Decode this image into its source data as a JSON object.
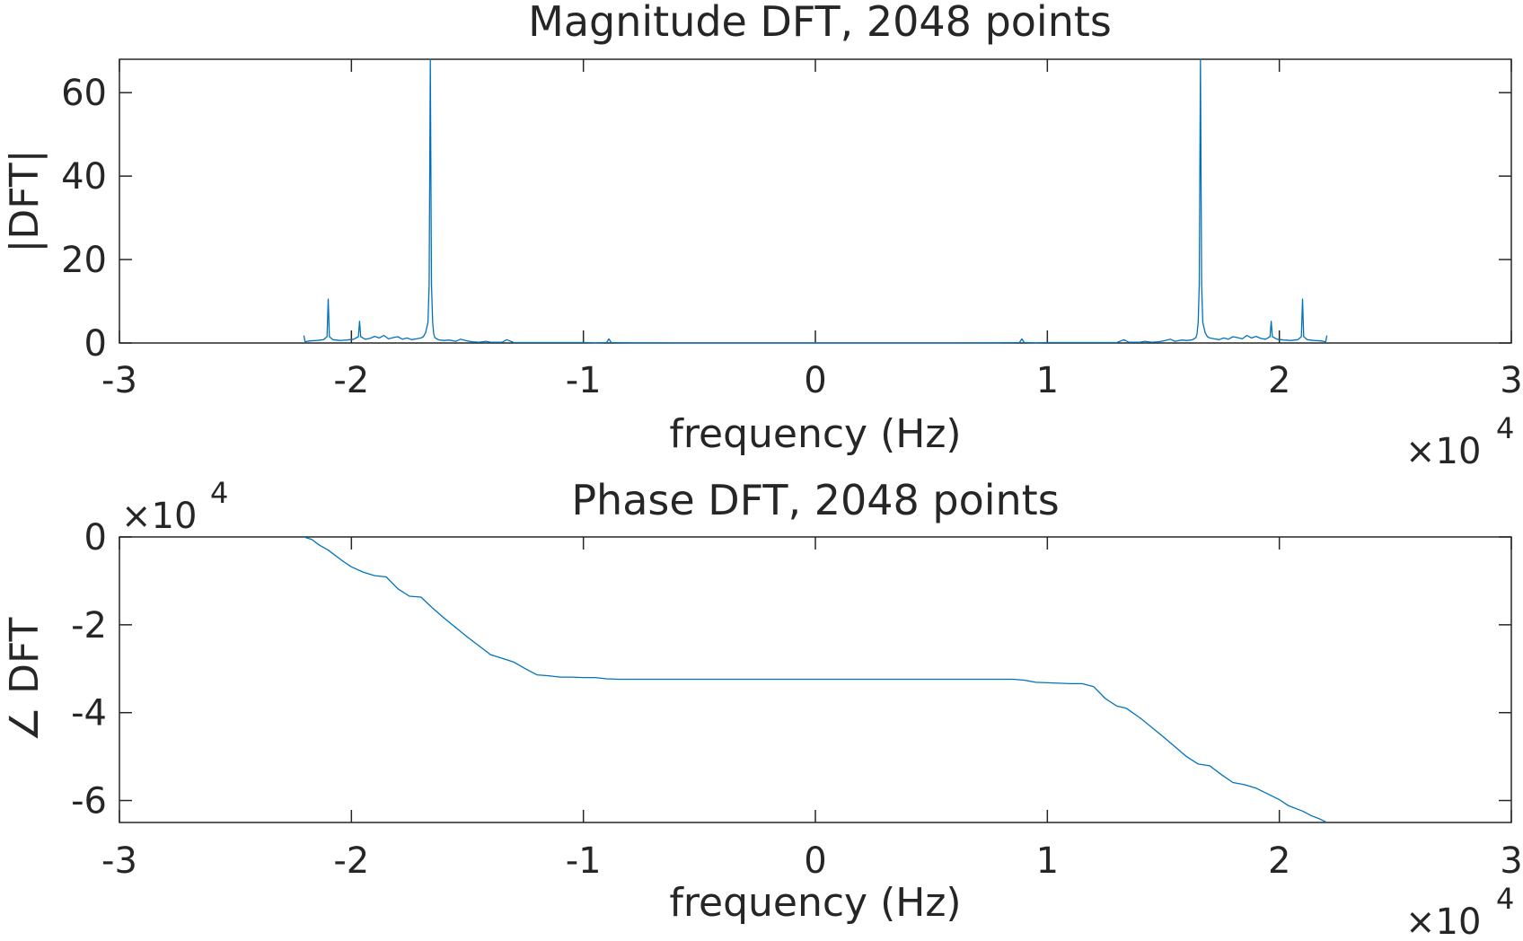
{
  "chart_data": [
    {
      "type": "line",
      "title": "Magnitude DFT, 2048 points",
      "xlabel": "frequency (Hz)",
      "ylabel": "|DFT|",
      "xlim": [
        -30000,
        30000
      ],
      "ylim": [
        0,
        68
      ],
      "xticks": [
        -30000,
        -20000,
        -10000,
        0,
        10000,
        20000,
        30000
      ],
      "xtick_labels": [
        "-3",
        "-2",
        "-1",
        "0",
        "1",
        "2",
        "3"
      ],
      "x_exponent_label": "×10",
      "x_exponent_power": "4",
      "yticks": [
        0,
        20,
        40,
        60
      ],
      "ytick_labels": [
        "0",
        "20",
        "40",
        "60"
      ],
      "grid": false,
      "color": "#0072BD",
      "series": [
        {
          "x": [
            -22050,
            -22000,
            -21800,
            -21500,
            -21200,
            -21050,
            -21000,
            -20950,
            -20800,
            -20500,
            -20200,
            -19900,
            -19700,
            -19650,
            -19600,
            -19400,
            -19200,
            -19000,
            -18800,
            -18600,
            -18400,
            -18200,
            -18000,
            -17800,
            -17600,
            -17400,
            -17200,
            -17000,
            -16900,
            -16800,
            -16700,
            -16650,
            -16600,
            -16550,
            -16500,
            -16450,
            -16400,
            -16300,
            -16200,
            -16000,
            -15800,
            -15500,
            -15300,
            -15000,
            -14800,
            -14500,
            -14200,
            -14000,
            -13800,
            -13500,
            -13300,
            -13000,
            -12000,
            -11000,
            -10000,
            -9500,
            -9000,
            -8900,
            -8800,
            -8000,
            -6000,
            -4000,
            -2000,
            0,
            2000,
            4000,
            6000,
            8000,
            8800,
            8900,
            9000,
            9500,
            10000,
            11000,
            12000,
            13000,
            13300,
            13500,
            13800,
            14000,
            14200,
            14500,
            14800,
            15000,
            15300,
            15500,
            15800,
            16000,
            16200,
            16300,
            16400,
            16450,
            16500,
            16550,
            16600,
            16650,
            16700,
            16800,
            16900,
            17000,
            17200,
            17400,
            17600,
            17800,
            18000,
            18200,
            18400,
            18600,
            18800,
            19000,
            19200,
            19400,
            19600,
            19650,
            19700,
            19900,
            20200,
            20500,
            20800,
            20950,
            21000,
            21050,
            21200,
            21500,
            21800,
            22000,
            22050
          ],
          "y": [
            1.8,
            0.3,
            0.5,
            0.6,
            0.8,
            1.5,
            10.5,
            1.5,
            0.8,
            0.6,
            0.7,
            0.9,
            1.5,
            5.2,
            1.5,
            0.9,
            1.1,
            1.6,
            1.2,
            1.8,
            1.0,
            1.3,
            1.5,
            0.9,
            1.2,
            0.8,
            1.0,
            1.2,
            1.5,
            2.5,
            5.0,
            14.0,
            68.0,
            14.0,
            5.0,
            2.2,
            1.3,
            0.9,
            0.7,
            0.6,
            0.7,
            0.4,
            0.9,
            0.5,
            0.3,
            0.2,
            0.4,
            0.2,
            0.2,
            0.2,
            0.8,
            0.1,
            0.1,
            0.1,
            0.1,
            0.05,
            0.1,
            1.0,
            0.1,
            0.05,
            0.03,
            0.03,
            0.03,
            0.03,
            0.03,
            0.03,
            0.03,
            0.05,
            0.1,
            1.0,
            0.1,
            0.05,
            0.1,
            0.1,
            0.1,
            0.1,
            0.8,
            0.2,
            0.2,
            0.2,
            0.4,
            0.2,
            0.3,
            0.5,
            0.9,
            0.4,
            0.7,
            0.6,
            0.7,
            0.9,
            1.3,
            2.2,
            5.0,
            14.0,
            68.0,
            14.0,
            5.0,
            2.5,
            1.5,
            1.2,
            1.0,
            0.8,
            1.2,
            0.9,
            1.5,
            1.3,
            1.0,
            1.8,
            1.2,
            1.6,
            1.1,
            0.9,
            1.5,
            5.2,
            1.5,
            0.9,
            0.7,
            0.6,
            0.8,
            1.5,
            10.5,
            1.5,
            0.8,
            0.6,
            0.5,
            0.3,
            1.8
          ]
        }
      ]
    },
    {
      "type": "line",
      "title": "Phase DFT, 2048 points",
      "xlabel": "frequency (Hz)",
      "ylabel": "∠ DFT",
      "xlim": [
        -30000,
        30000
      ],
      "ylim": [
        -65000,
        0
      ],
      "xticks": [
        -30000,
        -20000,
        -10000,
        0,
        10000,
        20000,
        30000
      ],
      "xtick_labels": [
        "-3",
        "-2",
        "-1",
        "0",
        "1",
        "2",
        "3"
      ],
      "x_exponent_label": "×10",
      "x_exponent_power": "4",
      "yticks": [
        0,
        -20000,
        -40000,
        -60000
      ],
      "ytick_labels": [
        "0",
        "-2",
        "-4",
        "-6"
      ],
      "y_exponent_label": "×10",
      "y_exponent_power": "4",
      "grid": false,
      "color": "#0072BD",
      "series": [
        {
          "x": [
            -22050,
            -21700,
            -21400,
            -21000,
            -20400,
            -20000,
            -19500,
            -19000,
            -18500,
            -18000,
            -17500,
            -17000,
            -16500,
            -16000,
            -15000,
            -14000,
            -13400,
            -13000,
            -12500,
            -12000,
            -11500,
            -11000,
            -10500,
            -10000,
            -9500,
            -9000,
            -8500,
            -5000,
            0,
            5000,
            8500,
            9000,
            9500,
            10000,
            10500,
            11000,
            11500,
            12000,
            12500,
            13000,
            13400,
            14000,
            15000,
            16000,
            16500,
            17000,
            17500,
            18000,
            18500,
            19000,
            19500,
            20000,
            20400,
            21000,
            21400,
            21700,
            22050
          ],
          "y": [
            0,
            -600,
            -1800,
            -3000,
            -5400,
            -6800,
            -8000,
            -8800,
            -9100,
            -11800,
            -13500,
            -13700,
            -16200,
            -18500,
            -22800,
            -26800,
            -27800,
            -28500,
            -30000,
            -31400,
            -31600,
            -31900,
            -31900,
            -32000,
            -32000,
            -32300,
            -32400,
            -32400,
            -32400,
            -32400,
            -32400,
            -32600,
            -33100,
            -33200,
            -33300,
            -33400,
            -33400,
            -34100,
            -36800,
            -38500,
            -39000,
            -41200,
            -45500,
            -50000,
            -51700,
            -52100,
            -54100,
            -55900,
            -56400,
            -57200,
            -58500,
            -59800,
            -61200,
            -62400,
            -63500,
            -64100,
            -65000
          ]
        }
      ]
    }
  ]
}
